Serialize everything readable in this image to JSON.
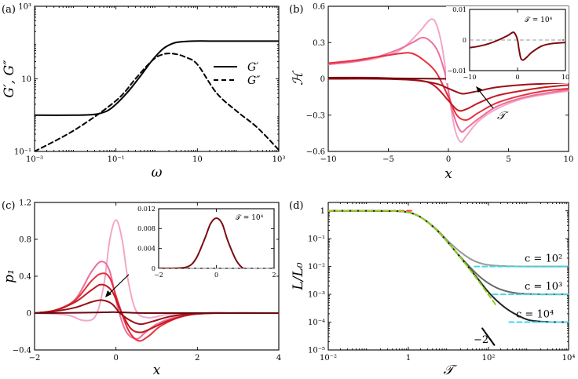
{
  "figure": {
    "panels": [
      "(a)",
      "(b)",
      "(c)",
      "(d)"
    ]
  },
  "chart_data": [
    {
      "id": "a",
      "panel": "(a)",
      "type": "line",
      "xscale": "log",
      "yscale": "log",
      "xlim": [
        0.001,
        1000
      ],
      "ylim": [
        0.1,
        1000
      ],
      "xlabel": "ω",
      "ylabel": "G′, G″",
      "xticks": [
        {
          "v": 0.001,
          "l": "10⁻³"
        },
        {
          "v": 0.1,
          "l": "10⁻¹"
        },
        {
          "v": 10,
          "l": "10"
        },
        {
          "v": 1000,
          "l": "10³"
        }
      ],
      "yticks": [
        {
          "v": 0.1,
          "l": "10⁻¹"
        },
        {
          "v": 10,
          "l": "10"
        },
        {
          "v": 1000,
          "l": "10³"
        }
      ],
      "legend": {
        "position": "center-right",
        "entries": [
          "G′",
          "G″"
        ]
      },
      "series": [
        {
          "name": "G′",
          "style": "solid",
          "x": [
            0.001,
            0.01,
            0.03,
            0.06,
            0.1,
            0.2,
            0.4,
            0.7,
            1,
            1.5,
            2.5,
            4,
            8,
            20,
            100,
            1000
          ],
          "y": [
            1.0,
            1.0,
            1.05,
            1.3,
            2.0,
            4.5,
            12,
            28,
            45,
            70,
            95,
            105,
            110,
            110,
            110,
            110
          ]
        },
        {
          "name": "G″",
          "style": "dashed",
          "x": [
            0.001,
            0.01,
            0.1,
            0.3,
            0.6,
            1,
            1.5,
            2,
            3,
            5,
            10,
            30,
            100,
            300,
            1000
          ],
          "y": [
            0.1,
            0.4,
            2.5,
            10,
            24,
            40,
            48,
            50,
            48,
            40,
            25,
            4,
            1.2,
            0.45,
            0.11
          ]
        }
      ]
    },
    {
      "id": "b",
      "panel": "(b)",
      "type": "line",
      "xlim": [
        -10,
        10
      ],
      "ylim": [
        -0.6,
        0.6
      ],
      "xlabel": "x",
      "ylabel": "ℋ",
      "xticks": [
        {
          "v": -10,
          "l": "−10"
        },
        {
          "v": -5,
          "l": "−5"
        },
        {
          "v": 0,
          "l": "0"
        },
        {
          "v": 5,
          "l": "5"
        },
        {
          "v": 10,
          "l": "10"
        }
      ],
      "yticks": [
        {
          "v": -0.6,
          "l": "−0.6"
        },
        {
          "v": -0.3,
          "l": "−0.3"
        },
        {
          "v": 0,
          "l": "0"
        },
        {
          "v": 0.3,
          "l": "0.3"
        },
        {
          "v": 0.6,
          "l": "0.6"
        }
      ],
      "annotation": "𝒯",
      "series": [
        {
          "name": "c1",
          "color": "#f4a6c8",
          "x": [
            -10,
            -8,
            -6,
            -4,
            -2.5,
            -1.5,
            -1,
            -0.5,
            0,
            0.5,
            1,
            1.5,
            2.5,
            4,
            6,
            8,
            10
          ],
          "y": [
            0.12,
            0.14,
            0.17,
            0.24,
            0.38,
            0.49,
            0.45,
            0.25,
            -0.1,
            -0.4,
            -0.52,
            -0.47,
            -0.35,
            -0.25,
            -0.17,
            -0.13,
            -0.1
          ]
        },
        {
          "name": "c2",
          "color": "#ec6f9e",
          "x": [
            -10,
            -8,
            -6,
            -4,
            -3,
            -2,
            -1,
            -0.3,
            0.3,
            1,
            1.6,
            2.5,
            4,
            6,
            8,
            10
          ],
          "y": [
            0.12,
            0.14,
            0.18,
            0.25,
            0.3,
            0.34,
            0.25,
            0.05,
            -0.25,
            -0.43,
            -0.4,
            -0.33,
            -0.23,
            -0.16,
            -0.12,
            -0.09
          ]
        },
        {
          "name": "c3",
          "color": "#e8303b",
          "x": [
            -10,
            -8,
            -6,
            -4,
            -3,
            -2,
            -1,
            0,
            0.7,
            1.5,
            2.5,
            4,
            6,
            8,
            10
          ],
          "y": [
            0.13,
            0.15,
            0.18,
            0.21,
            0.21,
            0.15,
            0.05,
            -0.15,
            -0.3,
            -0.34,
            -0.28,
            -0.2,
            -0.14,
            -0.1,
            -0.08
          ]
        },
        {
          "name": "c4",
          "color": "#c41a20",
          "x": [
            -10,
            -6,
            -4,
            -2,
            -1,
            0,
            0.8,
            1.5,
            2.5,
            4,
            6,
            8,
            10
          ],
          "y": [
            0.01,
            0.01,
            0.0,
            -0.02,
            -0.07,
            -0.18,
            -0.26,
            -0.25,
            -0.2,
            -0.14,
            -0.1,
            -0.07,
            -0.05
          ]
        },
        {
          "name": "c5",
          "color": "#9b1017",
          "x": [
            -10,
            -6,
            -3,
            -1,
            0,
            1,
            1.5,
            2.5,
            4,
            6,
            8,
            10
          ],
          "y": [
            0.0,
            0.0,
            -0.01,
            -0.04,
            -0.08,
            -0.12,
            -0.12,
            -0.1,
            -0.07,
            -0.05,
            -0.04,
            -0.03
          ]
        },
        {
          "name": "c6",
          "color": "#6b0a0e",
          "x": [
            -10,
            -5,
            0,
            5,
            10
          ],
          "y": [
            0.01,
            0.005,
            0.0,
            -0.002,
            -0.005
          ]
        }
      ],
      "inset": {
        "xlim": [
          -10,
          10
        ],
        "ylim": [
          -0.01,
          0.01
        ],
        "xticks": [
          {
            "v": -10,
            "l": "−10"
          },
          {
            "v": 0,
            "l": "0"
          },
          {
            "v": 10,
            "l": "10"
          }
        ],
        "yticks": [
          {
            "v": -0.01,
            "l": "−0.01"
          },
          {
            "v": 0,
            "l": "0"
          },
          {
            "v": 0.01,
            "l": "0.01"
          }
        ],
        "label": "𝒯 = 10⁴",
        "series": [
          {
            "name": "inset",
            "color": "#7a0c10",
            "x": [
              -10,
              -8,
              -6,
              -4,
              -2,
              -1,
              -0.5,
              0,
              0.3,
              0.7,
              1.2,
              2,
              3,
              5,
              7,
              10
            ],
            "y": [
              -0.0025,
              -0.002,
              -0.0012,
              0.0,
              0.0015,
              0.0025,
              0.002,
              0.0,
              -0.003,
              -0.006,
              -0.0065,
              -0.0055,
              -0.004,
              -0.002,
              -0.0012,
              -0.0008
            ]
          }
        ]
      }
    },
    {
      "id": "c",
      "panel": "(c)",
      "type": "line",
      "xlim": [
        -2,
        4
      ],
      "ylim": [
        -0.4,
        1.2
      ],
      "xlabel": "x",
      "ylabel": "p₁",
      "xticks": [
        {
          "v": -2,
          "l": "−2"
        },
        {
          "v": 0,
          "l": "0"
        },
        {
          "v": 2,
          "l": "2"
        },
        {
          "v": 4,
          "l": "4"
        }
      ],
      "yticks": [
        {
          "v": -0.4,
          "l": "−0.4"
        },
        {
          "v": 0,
          "l": "0"
        },
        {
          "v": 0.4,
          "l": "0.4"
        },
        {
          "v": 0.8,
          "l": "0.8"
        },
        {
          "v": 1.2,
          "l": "1.2"
        }
      ],
      "annotation": "𝒯",
      "series": [
        {
          "name": "c1",
          "color": "#f4a6c8",
          "x": [
            -2,
            -1.2,
            -0.8,
            -0.5,
            -0.3,
            -0.15,
            0,
            0.15,
            0.3,
            0.5,
            0.8,
            1.2,
            1.8,
            2.5,
            4
          ],
          "y": [
            0.0,
            -0.02,
            -0.08,
            -0.03,
            0.3,
            0.8,
            1.01,
            0.8,
            0.35,
            0.02,
            -0.05,
            -0.02,
            0.0,
            0.0,
            0.0
          ]
        },
        {
          "name": "c2",
          "color": "#ec6f9e",
          "x": [
            -2,
            -1.5,
            -1,
            -0.6,
            -0.35,
            -0.15,
            0.05,
            0.25,
            0.5,
            0.7,
            1,
            1.5,
            2.2,
            3,
            4
          ],
          "y": [
            0.0,
            0.02,
            0.15,
            0.45,
            0.56,
            0.45,
            0.05,
            -0.2,
            -0.28,
            -0.22,
            -0.12,
            -0.04,
            0.0,
            0.0,
            0.0
          ]
        },
        {
          "name": "c3",
          "color": "#e8303b",
          "x": [
            -2,
            -1.5,
            -1,
            -0.6,
            -0.35,
            -0.15,
            0.05,
            0.3,
            0.55,
            0.8,
            1.1,
            1.6,
            2.2,
            3,
            4
          ],
          "y": [
            0.0,
            0.03,
            0.14,
            0.35,
            0.43,
            0.38,
            0.12,
            -0.18,
            -0.3,
            -0.25,
            -0.14,
            -0.04,
            0.0,
            0.0,
            0.0
          ]
        },
        {
          "name": "c4",
          "color": "#c41a20",
          "x": [
            -2,
            -1.5,
            -1,
            -0.6,
            -0.35,
            -0.1,
            0.1,
            0.35,
            0.6,
            0.9,
            1.3,
            1.8,
            2.5,
            4
          ],
          "y": [
            0.0,
            0.03,
            0.12,
            0.25,
            0.31,
            0.24,
            0.04,
            -0.16,
            -0.21,
            -0.16,
            -0.08,
            -0.02,
            0.0,
            0.0
          ]
        },
        {
          "name": "c5",
          "color": "#9b1017",
          "x": [
            -2,
            -1.5,
            -1,
            -0.6,
            -0.35,
            -0.1,
            0.1,
            0.35,
            0.6,
            0.9,
            1.3,
            1.8,
            2.5,
            4
          ],
          "y": [
            0.0,
            0.02,
            0.06,
            0.12,
            0.14,
            0.1,
            0.0,
            -0.08,
            -0.12,
            -0.09,
            -0.04,
            -0.01,
            0.0,
            0.0
          ]
        },
        {
          "name": "c6",
          "color": "#6b0a0e",
          "x": [
            -2,
            -1,
            -0.3,
            0,
            0.5,
            1,
            2,
            4
          ],
          "y": [
            0.0,
            0.003,
            0.008,
            0.01,
            0.002,
            0.0,
            0.0,
            0.0
          ]
        }
      ],
      "inset": {
        "xlim": [
          -2,
          2
        ],
        "ylim": [
          0,
          0.012
        ],
        "xticks": [
          {
            "v": -2,
            "l": "−2"
          },
          {
            "v": 0,
            "l": "0"
          },
          {
            "v": 2,
            "l": "2"
          }
        ],
        "yticks": [
          {
            "v": 0,
            "l": "0"
          },
          {
            "v": 0.004,
            "l": "0.004"
          },
          {
            "v": 0.008,
            "l": "0.008"
          },
          {
            "v": 0.012,
            "l": "0.012"
          }
        ],
        "label": "𝒯 = 10⁴",
        "series": [
          {
            "name": "inset",
            "color": "#7a0c10",
            "x": [
              -2,
              -1.5,
              -1,
              -0.7,
              -0.4,
              -0.2,
              0,
              0.2,
              0.4,
              0.7,
              1,
              1.3,
              1.6,
              2
            ],
            "y": [
              0.0,
              0.0,
              0.0003,
              0.002,
              0.006,
              0.009,
              0.0101,
              0.009,
              0.0055,
              0.0015,
              -0.0003,
              -0.0006,
              -0.0003,
              0.0
            ]
          }
        ]
      }
    },
    {
      "id": "d",
      "panel": "(d)",
      "type": "line",
      "xscale": "log",
      "yscale": "log",
      "xlim": [
        0.01,
        10000
      ],
      "ylim": [
        1e-05,
        2
      ],
      "xlabel": "𝒯",
      "ylabel": "L/L₀",
      "xticks": [
        {
          "v": 0.01,
          "l": "10⁻²"
        },
        {
          "v": 1,
          "l": "1"
        },
        {
          "v": 100,
          "l": "10²"
        },
        {
          "v": 10000,
          "l": "10⁴"
        }
      ],
      "yticks": [
        {
          "v": 1,
          "l": "1"
        },
        {
          "v": 0.1,
          "l": "10⁻¹"
        },
        {
          "v": 0.01,
          "l": "10⁻²"
        },
        {
          "v": 0.001,
          "l": "10⁻³"
        },
        {
          "v": 0.0001,
          "l": "10⁻⁴"
        },
        {
          "v": 1e-05,
          "l": "10⁻⁵"
        }
      ],
      "labels": [
        "c = 10²",
        "c = 10³",
        "c = 10⁴"
      ],
      "slope_label": "−2",
      "series": [
        {
          "name": "c = 10²",
          "color": "#999999",
          "x": [
            0.01,
            0.1,
            0.5,
            1,
            2,
            5,
            10,
            20,
            40,
            80,
            200,
            1000,
            10000
          ],
          "y": [
            1,
            1,
            0.98,
            0.88,
            0.6,
            0.22,
            0.08,
            0.033,
            0.017,
            0.012,
            0.0105,
            0.01,
            0.01
          ]
        },
        {
          "name": "c = 10³",
          "color": "#666666",
          "x": [
            0.01,
            0.1,
            0.5,
            1,
            2,
            5,
            10,
            20,
            50,
            100,
            200,
            500,
            2000,
            10000
          ],
          "y": [
            1,
            1,
            0.98,
            0.88,
            0.6,
            0.21,
            0.07,
            0.022,
            0.0055,
            0.0025,
            0.0015,
            0.0011,
            0.001,
            0.001
          ]
        },
        {
          "name": "c = 10⁴",
          "color": "#222222",
          "x": [
            0.01,
            0.1,
            0.5,
            1,
            2,
            5,
            10,
            20,
            50,
            100,
            200,
            400,
            1000,
            3000,
            10000
          ],
          "y": [
            1,
            1,
            0.98,
            0.88,
            0.6,
            0.21,
            0.07,
            0.021,
            0.0042,
            0.0012,
            0.00045,
            0.00022,
            0.00012,
            0.000102,
            0.0001
          ]
        },
        {
          "name": "asymptote-small",
          "color": "#ff3b3b",
          "style": "dashed",
          "x": [
            0.01,
            1.2
          ],
          "y": [
            1,
            1
          ]
        },
        {
          "name": "asymptote-large",
          "color": "#8bd317",
          "style": "dashed",
          "x": [
            0.01,
            0.1,
            0.5,
            1,
            2,
            5,
            10,
            20,
            50,
            100,
            150
          ],
          "y": [
            1,
            1,
            0.98,
            0.88,
            0.6,
            0.21,
            0.07,
            0.021,
            0.0038,
            0.00097,
            0.00043
          ]
        },
        {
          "name": "plateau-1e-2",
          "color": "#3fd8e6",
          "style": "dashed",
          "x": [
            45,
            10000
          ],
          "y": [
            0.01,
            0.01
          ]
        },
        {
          "name": "plateau-1e-3",
          "color": "#3fd8e6",
          "style": "dashed",
          "x": [
            130,
            10000
          ],
          "y": [
            0.001,
            0.001
          ]
        },
        {
          "name": "plateau-1e-4",
          "color": "#3fd8e6",
          "style": "dashed",
          "x": [
            330,
            10000
          ],
          "y": [
            0.0001,
            0.0001
          ]
        },
        {
          "name": "slope-guide",
          "color": "#000000",
          "style": "solid",
          "x": [
            70,
            140
          ],
          "y": [
            6e-05,
            1.5e-05
          ]
        }
      ]
    }
  ]
}
